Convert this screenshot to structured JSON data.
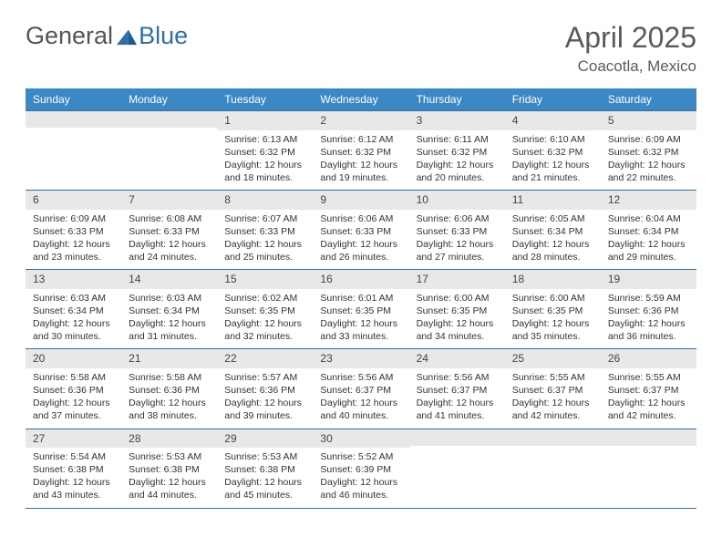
{
  "brand": {
    "part1": "General",
    "part2": "Blue"
  },
  "title": "April 2025",
  "location": "Coacotla, Mexico",
  "colors": {
    "header_bg": "#3b88c4",
    "header_text": "#ffffff",
    "cell_border": "#2f6fa8",
    "daynum_bg": "#e8e8e8",
    "body_text": "#333333",
    "title_text": "#5a5a5a"
  },
  "typography": {
    "title_fontsize": 32,
    "location_fontsize": 17,
    "dayheader_fontsize": 12,
    "cell_fontsize": 10.5
  },
  "days_of_week": [
    "Sunday",
    "Monday",
    "Tuesday",
    "Wednesday",
    "Thursday",
    "Friday",
    "Saturday"
  ],
  "weeks": [
    [
      {
        "n": "",
        "sunrise": "",
        "sunset": "",
        "daylight": ""
      },
      {
        "n": "",
        "sunrise": "",
        "sunset": "",
        "daylight": ""
      },
      {
        "n": "1",
        "sunrise": "Sunrise: 6:13 AM",
        "sunset": "Sunset: 6:32 PM",
        "daylight": "Daylight: 12 hours and 18 minutes."
      },
      {
        "n": "2",
        "sunrise": "Sunrise: 6:12 AM",
        "sunset": "Sunset: 6:32 PM",
        "daylight": "Daylight: 12 hours and 19 minutes."
      },
      {
        "n": "3",
        "sunrise": "Sunrise: 6:11 AM",
        "sunset": "Sunset: 6:32 PM",
        "daylight": "Daylight: 12 hours and 20 minutes."
      },
      {
        "n": "4",
        "sunrise": "Sunrise: 6:10 AM",
        "sunset": "Sunset: 6:32 PM",
        "daylight": "Daylight: 12 hours and 21 minutes."
      },
      {
        "n": "5",
        "sunrise": "Sunrise: 6:09 AM",
        "sunset": "Sunset: 6:32 PM",
        "daylight": "Daylight: 12 hours and 22 minutes."
      }
    ],
    [
      {
        "n": "6",
        "sunrise": "Sunrise: 6:09 AM",
        "sunset": "Sunset: 6:33 PM",
        "daylight": "Daylight: 12 hours and 23 minutes."
      },
      {
        "n": "7",
        "sunrise": "Sunrise: 6:08 AM",
        "sunset": "Sunset: 6:33 PM",
        "daylight": "Daylight: 12 hours and 24 minutes."
      },
      {
        "n": "8",
        "sunrise": "Sunrise: 6:07 AM",
        "sunset": "Sunset: 6:33 PM",
        "daylight": "Daylight: 12 hours and 25 minutes."
      },
      {
        "n": "9",
        "sunrise": "Sunrise: 6:06 AM",
        "sunset": "Sunset: 6:33 PM",
        "daylight": "Daylight: 12 hours and 26 minutes."
      },
      {
        "n": "10",
        "sunrise": "Sunrise: 6:06 AM",
        "sunset": "Sunset: 6:33 PM",
        "daylight": "Daylight: 12 hours and 27 minutes."
      },
      {
        "n": "11",
        "sunrise": "Sunrise: 6:05 AM",
        "sunset": "Sunset: 6:34 PM",
        "daylight": "Daylight: 12 hours and 28 minutes."
      },
      {
        "n": "12",
        "sunrise": "Sunrise: 6:04 AM",
        "sunset": "Sunset: 6:34 PM",
        "daylight": "Daylight: 12 hours and 29 minutes."
      }
    ],
    [
      {
        "n": "13",
        "sunrise": "Sunrise: 6:03 AM",
        "sunset": "Sunset: 6:34 PM",
        "daylight": "Daylight: 12 hours and 30 minutes."
      },
      {
        "n": "14",
        "sunrise": "Sunrise: 6:03 AM",
        "sunset": "Sunset: 6:34 PM",
        "daylight": "Daylight: 12 hours and 31 minutes."
      },
      {
        "n": "15",
        "sunrise": "Sunrise: 6:02 AM",
        "sunset": "Sunset: 6:35 PM",
        "daylight": "Daylight: 12 hours and 32 minutes."
      },
      {
        "n": "16",
        "sunrise": "Sunrise: 6:01 AM",
        "sunset": "Sunset: 6:35 PM",
        "daylight": "Daylight: 12 hours and 33 minutes."
      },
      {
        "n": "17",
        "sunrise": "Sunrise: 6:00 AM",
        "sunset": "Sunset: 6:35 PM",
        "daylight": "Daylight: 12 hours and 34 minutes."
      },
      {
        "n": "18",
        "sunrise": "Sunrise: 6:00 AM",
        "sunset": "Sunset: 6:35 PM",
        "daylight": "Daylight: 12 hours and 35 minutes."
      },
      {
        "n": "19",
        "sunrise": "Sunrise: 5:59 AM",
        "sunset": "Sunset: 6:36 PM",
        "daylight": "Daylight: 12 hours and 36 minutes."
      }
    ],
    [
      {
        "n": "20",
        "sunrise": "Sunrise: 5:58 AM",
        "sunset": "Sunset: 6:36 PM",
        "daylight": "Daylight: 12 hours and 37 minutes."
      },
      {
        "n": "21",
        "sunrise": "Sunrise: 5:58 AM",
        "sunset": "Sunset: 6:36 PM",
        "daylight": "Daylight: 12 hours and 38 minutes."
      },
      {
        "n": "22",
        "sunrise": "Sunrise: 5:57 AM",
        "sunset": "Sunset: 6:36 PM",
        "daylight": "Daylight: 12 hours and 39 minutes."
      },
      {
        "n": "23",
        "sunrise": "Sunrise: 5:56 AM",
        "sunset": "Sunset: 6:37 PM",
        "daylight": "Daylight: 12 hours and 40 minutes."
      },
      {
        "n": "24",
        "sunrise": "Sunrise: 5:56 AM",
        "sunset": "Sunset: 6:37 PM",
        "daylight": "Daylight: 12 hours and 41 minutes."
      },
      {
        "n": "25",
        "sunrise": "Sunrise: 5:55 AM",
        "sunset": "Sunset: 6:37 PM",
        "daylight": "Daylight: 12 hours and 42 minutes."
      },
      {
        "n": "26",
        "sunrise": "Sunrise: 5:55 AM",
        "sunset": "Sunset: 6:37 PM",
        "daylight": "Daylight: 12 hours and 42 minutes."
      }
    ],
    [
      {
        "n": "27",
        "sunrise": "Sunrise: 5:54 AM",
        "sunset": "Sunset: 6:38 PM",
        "daylight": "Daylight: 12 hours and 43 minutes."
      },
      {
        "n": "28",
        "sunrise": "Sunrise: 5:53 AM",
        "sunset": "Sunset: 6:38 PM",
        "daylight": "Daylight: 12 hours and 44 minutes."
      },
      {
        "n": "29",
        "sunrise": "Sunrise: 5:53 AM",
        "sunset": "Sunset: 6:38 PM",
        "daylight": "Daylight: 12 hours and 45 minutes."
      },
      {
        "n": "30",
        "sunrise": "Sunrise: 5:52 AM",
        "sunset": "Sunset: 6:39 PM",
        "daylight": "Daylight: 12 hours and 46 minutes."
      },
      {
        "n": "",
        "sunrise": "",
        "sunset": "",
        "daylight": ""
      },
      {
        "n": "",
        "sunrise": "",
        "sunset": "",
        "daylight": ""
      },
      {
        "n": "",
        "sunrise": "",
        "sunset": "",
        "daylight": ""
      }
    ]
  ]
}
